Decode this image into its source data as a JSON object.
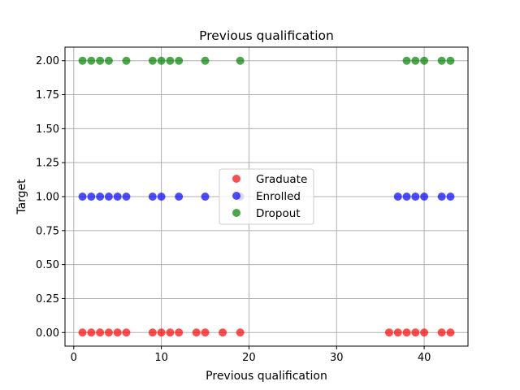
{
  "chart_data": {
    "type": "scatter",
    "title": "Previous qualification",
    "xlabel": "Previous qualification",
    "ylabel": "Target",
    "xlim": [
      -1,
      45
    ],
    "ylim": [
      -0.1,
      2.1
    ],
    "xticks": [
      0,
      10,
      20,
      30,
      40
    ],
    "yticks": [
      0.0,
      0.25,
      0.5,
      0.75,
      1.0,
      1.25,
      1.5,
      1.75,
      2.0
    ],
    "xtick_labels": [
      "0",
      "10",
      "20",
      "30",
      "40"
    ],
    "ytick_labels": [
      "0.00",
      "0.25",
      "0.50",
      "0.75",
      "1.00",
      "1.25",
      "1.50",
      "1.75",
      "2.00"
    ],
    "grid": true,
    "legend_position": "center",
    "series": [
      {
        "name": "Graduate",
        "color": "#ff0000",
        "points": [
          [
            1,
            0
          ],
          [
            2,
            0
          ],
          [
            3,
            0
          ],
          [
            4,
            0
          ],
          [
            5,
            0
          ],
          [
            6,
            0
          ],
          [
            9,
            0
          ],
          [
            10,
            0
          ],
          [
            11,
            0
          ],
          [
            12,
            0
          ],
          [
            14,
            0
          ],
          [
            15,
            0
          ],
          [
            17,
            0
          ],
          [
            19,
            0
          ],
          [
            36,
            0
          ],
          [
            37,
            0
          ],
          [
            38,
            0
          ],
          [
            39,
            0
          ],
          [
            40,
            0
          ],
          [
            42,
            0
          ],
          [
            43,
            0
          ]
        ]
      },
      {
        "name": "Enrolled",
        "color": "#0000ff",
        "points": [
          [
            1,
            1
          ],
          [
            2,
            1
          ],
          [
            3,
            1
          ],
          [
            4,
            1
          ],
          [
            5,
            1
          ],
          [
            6,
            1
          ],
          [
            9,
            1
          ],
          [
            10,
            1
          ],
          [
            12,
            1
          ],
          [
            15,
            1
          ],
          [
            19,
            1
          ],
          [
            37,
            1
          ],
          [
            38,
            1
          ],
          [
            39,
            1
          ],
          [
            40,
            1
          ],
          [
            42,
            1
          ],
          [
            43,
            1
          ]
        ]
      },
      {
        "name": "Dropout",
        "color": "#008000",
        "points": [
          [
            1,
            2
          ],
          [
            2,
            2
          ],
          [
            3,
            2
          ],
          [
            4,
            2
          ],
          [
            6,
            2
          ],
          [
            9,
            2
          ],
          [
            10,
            2
          ],
          [
            11,
            2
          ],
          [
            12,
            2
          ],
          [
            15,
            2
          ],
          [
            19,
            2
          ],
          [
            38,
            2
          ],
          [
            39,
            2
          ],
          [
            40,
            2
          ],
          [
            42,
            2
          ],
          [
            43,
            2
          ]
        ]
      }
    ]
  }
}
